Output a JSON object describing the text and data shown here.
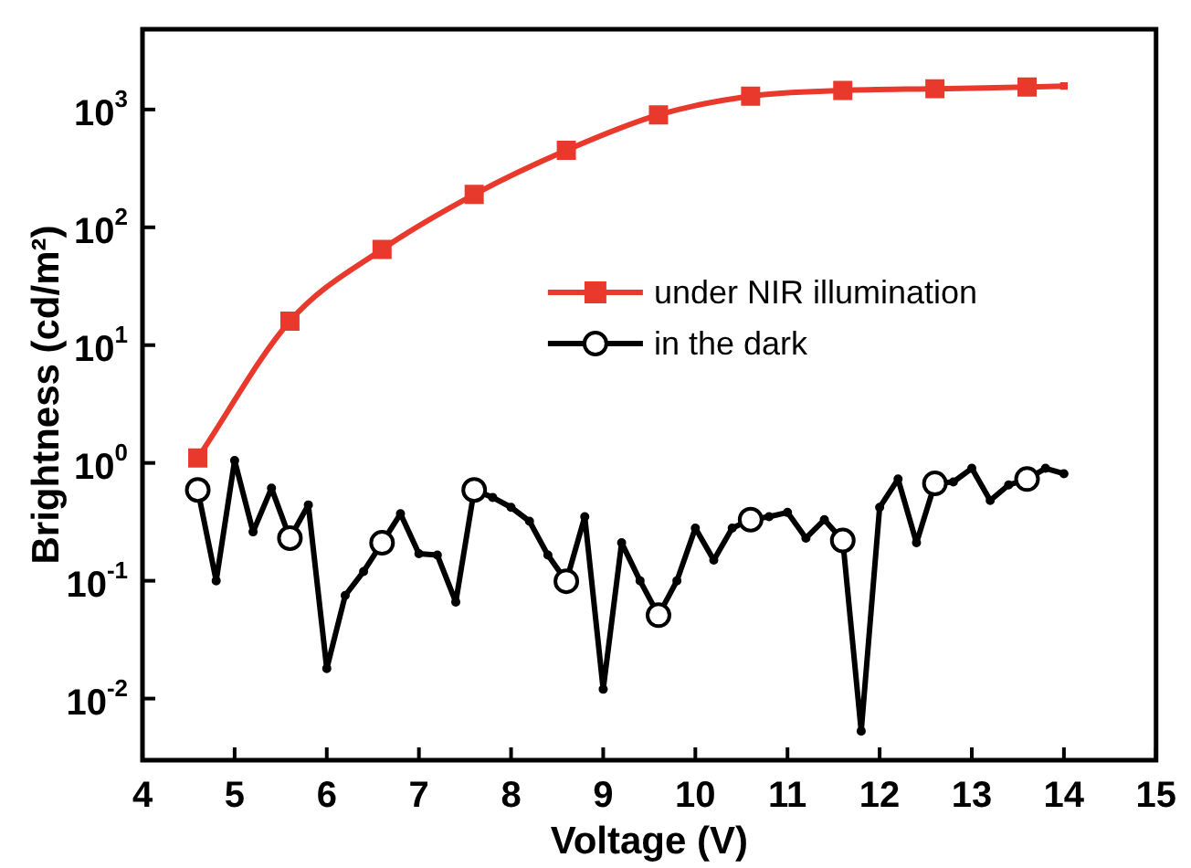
{
  "chart_data": {
    "type": "line",
    "xlabel": "Voltage (V)",
    "ylabel": "Brightness (cd/m²)",
    "log": "y",
    "xlim": [
      4,
      15
    ],
    "xticks": [
      4,
      5,
      6,
      7,
      8,
      9,
      10,
      11,
      12,
      13,
      14,
      15
    ],
    "ylim": [
      0.003,
      4800
    ],
    "yticks": [
      {
        "value": 0.01,
        "label": "10$^{-2}$"
      },
      {
        "value": 0.1,
        "label": "10$^{-1}$"
      },
      {
        "value": 1,
        "label": "10$^{0}$"
      },
      {
        "value": 10,
        "label": "10$^{1}$"
      },
      {
        "value": 100,
        "label": "10$^{2}$"
      },
      {
        "value": 1000,
        "label": "10$^{3}$"
      }
    ],
    "grid": false,
    "legend": "right",
    "line_style": "solid",
    "series": [
      {
        "name": "under NIR illumination",
        "color": "#e8392c",
        "marker": "square",
        "x": [
          4.6,
          5.6,
          6.6,
          7.6,
          8.6,
          9.6,
          10.6,
          11.6,
          12.6,
          13.6,
          14.0
        ],
        "values": [
          1.1,
          16,
          65,
          190,
          450,
          900,
          1300,
          1450,
          1500,
          1550,
          1580
        ]
      },
      {
        "name": "in the dark",
        "color": "#000000",
        "marker": "circle",
        "x": [
          4.6,
          4.8,
          5.0,
          5.2,
          5.4,
          5.6,
          5.8,
          6.0,
          6.2,
          6.4,
          6.6,
          6.8,
          7.0,
          7.2,
          7.4,
          7.6,
          7.8,
          8.0,
          8.2,
          8.4,
          8.6,
          8.8,
          9.0,
          9.2,
          9.4,
          9.6,
          9.8,
          10.0,
          10.2,
          10.4,
          10.6,
          10.8,
          11.0,
          11.2,
          11.4,
          11.6,
          11.8,
          12.0,
          12.2,
          12.4,
          12.6,
          12.8,
          13.0,
          13.2,
          13.4,
          13.6,
          13.8,
          14.0
        ],
        "values": [
          0.59,
          0.1,
          1.05,
          0.26,
          0.61,
          0.23,
          0.44,
          0.018,
          0.075,
          0.12,
          0.21,
          0.37,
          0.17,
          0.165,
          0.066,
          0.59,
          0.51,
          0.42,
          0.32,
          0.165,
          0.099,
          0.35,
          0.012,
          0.21,
          0.1,
          0.051,
          0.1,
          0.28,
          0.15,
          0.28,
          0.33,
          0.35,
          0.38,
          0.23,
          0.33,
          0.22,
          0.0053,
          0.42,
          0.73,
          0.21,
          0.67,
          0.69,
          0.9,
          0.48,
          0.65,
          0.73,
          0.9,
          0.81
        ]
      }
    ]
  }
}
